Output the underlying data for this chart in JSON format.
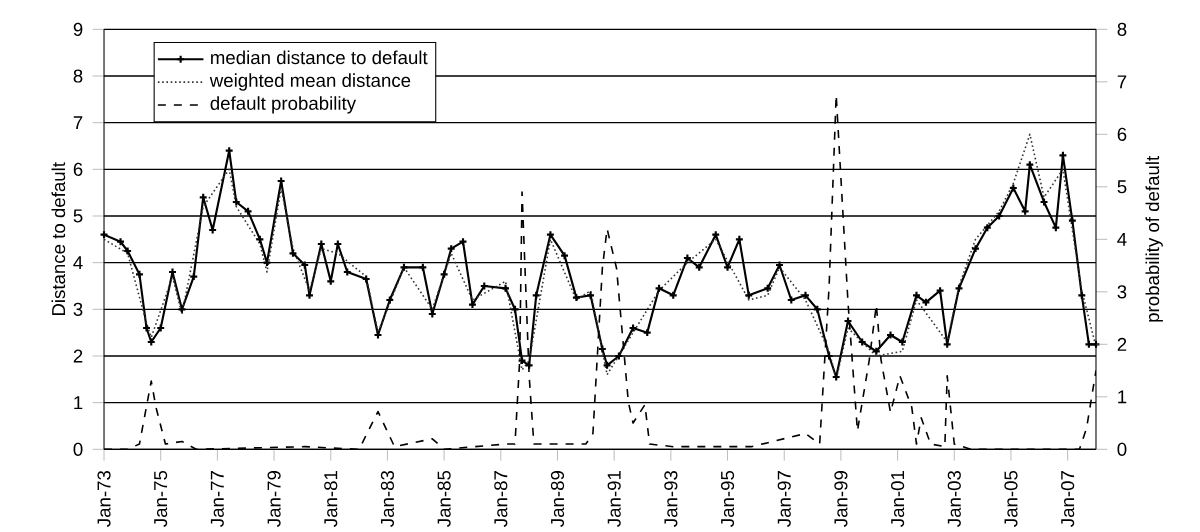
{
  "chart_data": {
    "type": "line",
    "ylabel": "Distance to default",
    "y2label": "probability of default",
    "xlim": [
      "1973-01",
      "2008-01"
    ],
    "ylim": [
      0,
      9
    ],
    "y2lim": [
      0,
      8
    ],
    "xticks": [
      {
        "value": "1973-01",
        "label": "Jan-73"
      },
      {
        "value": "1975-01",
        "label": "Jan-75"
      },
      {
        "value": "1977-01",
        "label": "Jan-77"
      },
      {
        "value": "1979-01",
        "label": "Jan-79"
      },
      {
        "value": "1981-01",
        "label": "Jan-81"
      },
      {
        "value": "1983-01",
        "label": "Jan-83"
      },
      {
        "value": "1985-01",
        "label": "Jan-85"
      },
      {
        "value": "1987-01",
        "label": "Jan-87"
      },
      {
        "value": "1989-01",
        "label": "Jan-89"
      },
      {
        "value": "1991-01",
        "label": "Jan-91"
      },
      {
        "value": "1993-01",
        "label": "Jan-93"
      },
      {
        "value": "1995-01",
        "label": "Jan-95"
      },
      {
        "value": "1997-01",
        "label": "Jan-97"
      },
      {
        "value": "1999-01",
        "label": "Jan-99"
      },
      {
        "value": "2001-01",
        "label": "Jan-01"
      },
      {
        "value": "2003-01",
        "label": "Jan-03"
      },
      {
        "value": "2005-01",
        "label": "Jan-05"
      },
      {
        "value": "2007-01",
        "label": "Jan-07"
      }
    ],
    "yticks": [
      0,
      1,
      2,
      3,
      4,
      5,
      6,
      7,
      8,
      9
    ],
    "y2ticks": [
      0,
      1,
      2,
      3,
      4,
      5,
      6,
      7,
      8
    ],
    "grid": "y",
    "legend": "top left",
    "series": [
      {
        "name": "median distance to default",
        "color": "#000000",
        "line_style": "solid",
        "marker": "cross",
        "x": [
          "1973-01",
          "1973-08",
          "1973-11",
          "1974-04",
          "1974-07",
          "1974-09",
          "1975-01",
          "1975-06",
          "1975-10",
          "1976-03",
          "1976-07",
          "1976-11",
          "1977-06",
          "1977-09",
          "1978-02",
          "1978-07",
          "1978-10",
          "1979-04",
          "1979-09",
          "1980-02",
          "1980-04",
          "1980-09",
          "1981-01",
          "1981-04",
          "1981-08",
          "1982-04",
          "1982-09",
          "1983-02",
          "1983-08",
          "1984-04",
          "1984-08",
          "1985-01",
          "1985-04",
          "1985-09",
          "1986-01",
          "1986-06",
          "1987-03",
          "1987-07",
          "1987-10",
          "1988-01",
          "1988-04",
          "1988-10",
          "1989-04",
          "1989-09",
          "1990-03",
          "1990-08",
          "1990-10",
          "1991-03",
          "1991-09",
          "1992-03",
          "1992-08",
          "1993-02",
          "1993-08",
          "1994-01",
          "1994-08",
          "1995-01",
          "1995-06",
          "1995-10",
          "1996-06",
          "1996-11",
          "1997-04",
          "1997-10",
          "1998-03",
          "1998-08",
          "1998-11",
          "1999-04",
          "1999-10",
          "2000-04",
          "2000-10",
          "2001-03",
          "2001-09",
          "2002-01",
          "2002-07",
          "2002-10",
          "2003-03",
          "2003-10",
          "2004-03",
          "2004-08",
          "2005-02",
          "2005-07",
          "2005-09",
          "2006-03",
          "2006-08",
          "2006-11",
          "2007-03",
          "2007-07",
          "2007-10",
          "2008-01"
        ],
        "values": [
          4.6,
          4.45,
          4.25,
          3.75,
          2.6,
          2.3,
          2.6,
          3.8,
          3.0,
          3.7,
          5.4,
          4.7,
          6.4,
          5.3,
          5.1,
          4.5,
          4.0,
          5.75,
          4.2,
          3.95,
          3.3,
          4.4,
          3.6,
          4.4,
          3.8,
          3.65,
          2.45,
          3.2,
          3.9,
          3.9,
          2.9,
          3.75,
          4.3,
          4.45,
          3.1,
          3.5,
          3.45,
          3.0,
          1.9,
          1.8,
          3.3,
          4.6,
          4.15,
          3.25,
          3.3,
          2.15,
          1.8,
          2.0,
          2.6,
          2.5,
          3.45,
          3.3,
          4.1,
          3.9,
          4.6,
          3.9,
          4.5,
          3.3,
          3.45,
          3.95,
          3.2,
          3.3,
          3.0,
          2.0,
          1.55,
          2.75,
          2.3,
          2.1,
          2.45,
          2.3,
          3.3,
          3.15,
          3.4,
          2.25,
          3.45,
          4.3,
          4.75,
          5.0,
          5.6,
          5.1,
          6.1,
          5.3,
          4.75,
          6.3,
          4.9,
          3.3,
          2.25,
          2.25
        ]
      },
      {
        "name": "weighted mean distance",
        "color": "#333333",
        "line_style": "dotted",
        "x": [
          "1973-01",
          "1973-11",
          "1974-07",
          "1974-09",
          "1975-06",
          "1975-10",
          "1976-07",
          "1977-06",
          "1977-09",
          "1978-07",
          "1978-10",
          "1979-04",
          "1979-09",
          "1980-04",
          "1980-09",
          "1981-04",
          "1982-04",
          "1982-09",
          "1983-08",
          "1984-08",
          "1985-04",
          "1986-01",
          "1987-03",
          "1987-10",
          "1988-01",
          "1988-10",
          "1989-09",
          "1990-03",
          "1990-10",
          "1991-09",
          "1992-08",
          "1993-08",
          "1994-08",
          "1995-10",
          "1996-06",
          "1996-11",
          "1997-10",
          "1998-08",
          "1998-11",
          "1999-04",
          "2000-04",
          "2001-03",
          "2001-09",
          "2002-10",
          "2003-03",
          "2003-10",
          "2004-08",
          "2005-02",
          "2005-09",
          "2006-03",
          "2006-11",
          "2007-07",
          "2008-01"
        ],
        "values": [
          4.5,
          4.2,
          2.7,
          2.4,
          3.7,
          2.9,
          5.2,
          6.0,
          5.2,
          4.4,
          3.8,
          5.6,
          4.3,
          3.4,
          4.3,
          4.2,
          3.7,
          2.5,
          3.9,
          3.0,
          4.2,
          3.2,
          3.6,
          1.7,
          1.9,
          4.5,
          3.2,
          3.4,
          1.6,
          2.5,
          3.4,
          4.0,
          4.5,
          3.2,
          3.3,
          3.9,
          3.2,
          2.1,
          1.5,
          2.6,
          2.0,
          2.1,
          3.2,
          2.3,
          3.5,
          4.5,
          5.1,
          5.7,
          6.75,
          5.4,
          6.0,
          3.4,
          2.2
        ]
      },
      {
        "name": "default probability",
        "color": "#000000",
        "line_style": "dashed",
        "axis": "y2",
        "x": [
          "1973-01",
          "1973-11",
          "1974-04",
          "1974-09",
          "1974-11",
          "1975-03",
          "1975-10",
          "1976-04",
          "1980-02",
          "1982-01",
          "1982-09",
          "1983-04",
          "1984-08",
          "1985-01",
          "1987-03",
          "1987-07",
          "1987-09",
          "1987-10",
          "1988-01",
          "1988-03",
          "1990-01",
          "1990-04",
          "1990-08",
          "1990-10",
          "1991-02",
          "1991-07",
          "1991-09",
          "1992-02",
          "1992-04",
          "1993-02",
          "1995-11",
          "1997-10",
          "1998-04",
          "1998-08",
          "1998-11",
          "1999-04",
          "1999-08",
          "2000-01",
          "2000-04",
          "2000-06",
          "2000-10",
          "2001-02",
          "2001-07",
          "2001-09",
          "2001-11",
          "2002-03",
          "2002-09",
          "2002-10",
          "2003-01",
          "2003-08",
          "2007-06",
          "2007-09",
          "2008-01"
        ],
        "values": [
          0,
          0,
          0.1,
          1.3,
          0.8,
          0.1,
          0.15,
          0,
          0.05,
          0,
          0.72,
          0.05,
          0.2,
          0,
          0.1,
          0.1,
          1.7,
          4.9,
          1.4,
          0.1,
          0.1,
          0.3,
          3.45,
          4.2,
          3.45,
          0.9,
          0.5,
          0.85,
          0.1,
          0.05,
          0.05,
          0.3,
          0.1,
          3.1,
          6.75,
          2.8,
          0.35,
          1.7,
          2.75,
          1.7,
          0.7,
          1.4,
          0.8,
          0.1,
          0.6,
          0.1,
          0.05,
          1.4,
          0.1,
          0,
          0,
          0.4,
          1.5
        ]
      }
    ]
  }
}
